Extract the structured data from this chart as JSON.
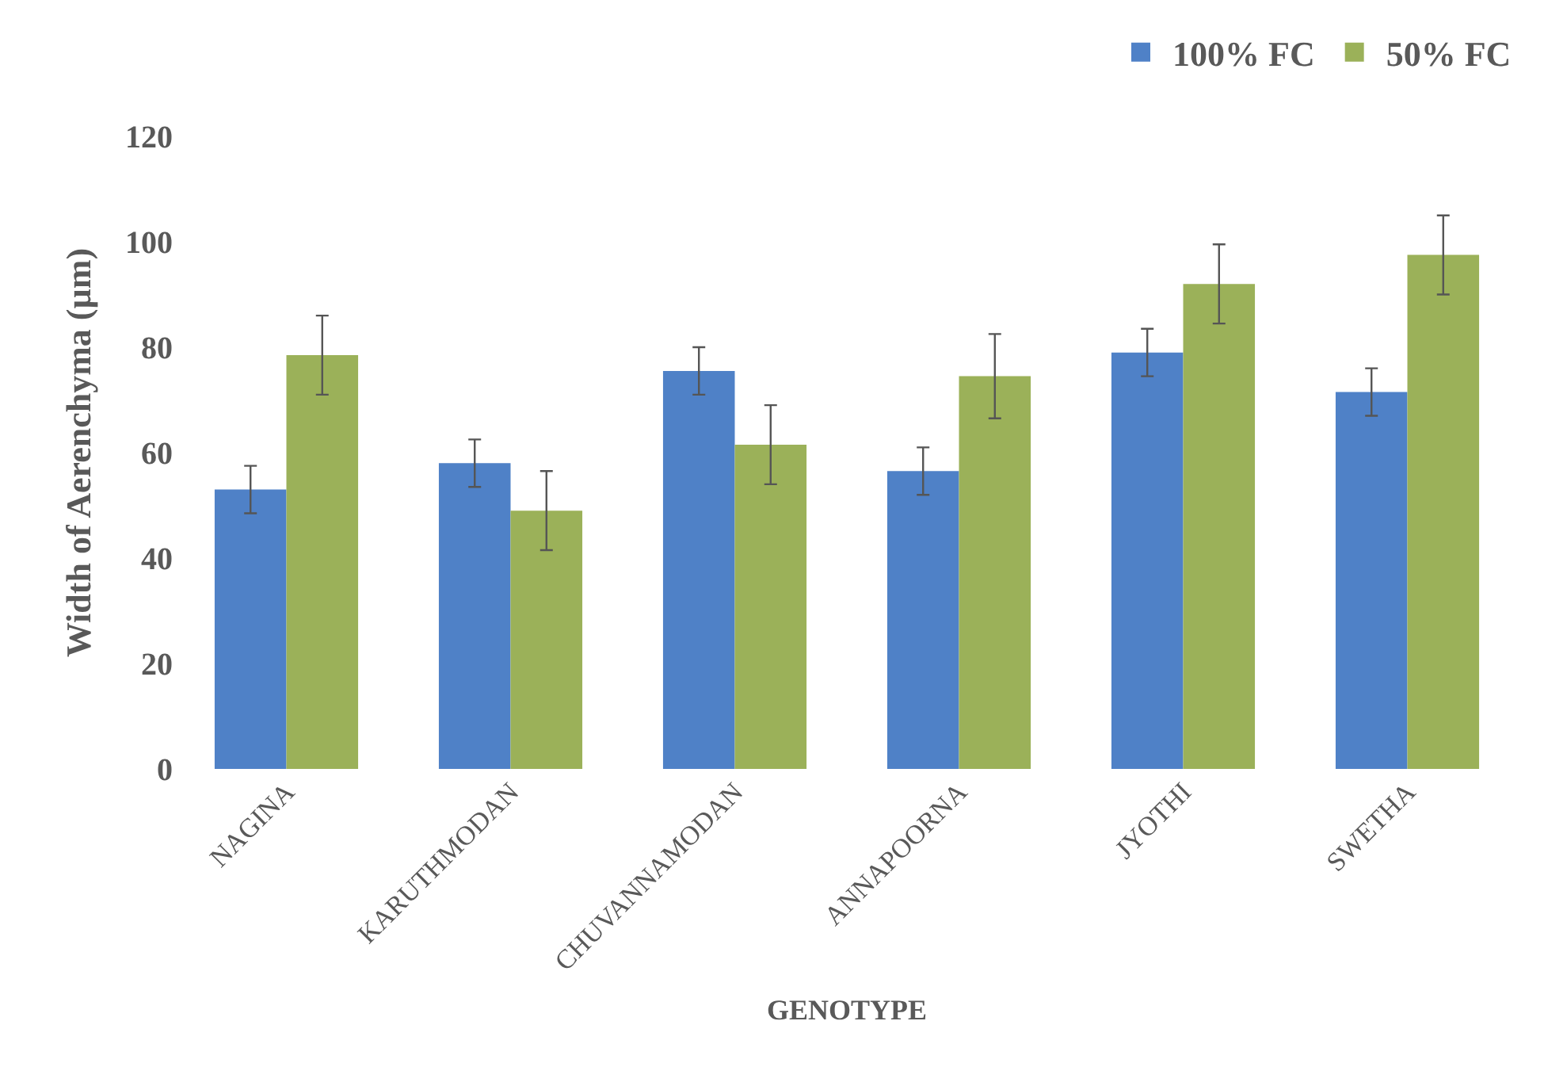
{
  "chart_data": {
    "type": "bar",
    "xlabel": "GENOTYPE",
    "ylabel": "Width of Aerenchyma (µm)",
    "categories": [
      "NAGINA",
      "KARUTHMODAN",
      "CHUVANNAMODAN",
      "ANNAPOORNA",
      "JYOTHI",
      "SWETHA"
    ],
    "series": [
      {
        "name": "100% FC",
        "color": "#4f81c7",
        "values": [
          53,
          58,
          75.5,
          56.5,
          79,
          71.5
        ],
        "errors": [
          4.5,
          4.5,
          4.5,
          4.5,
          4.5,
          4.5
        ]
      },
      {
        "name": "50% FC",
        "color": "#9bb159",
        "values": [
          78.5,
          49,
          61.5,
          74.5,
          92,
          97.5
        ],
        "errors": [
          7.5,
          7.5,
          7.5,
          8,
          7.5,
          7.5
        ]
      }
    ],
    "ylim": [
      0,
      120
    ],
    "yticks": [
      0,
      20,
      40,
      60,
      80,
      100,
      120
    ],
    "legend": "top right"
  }
}
